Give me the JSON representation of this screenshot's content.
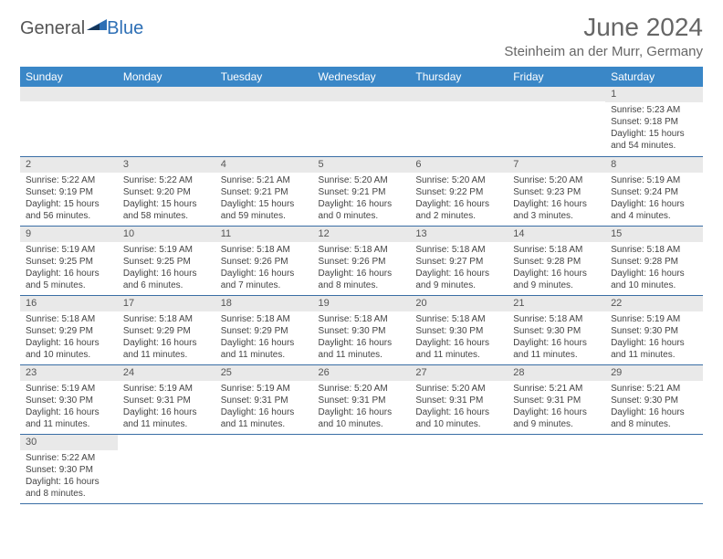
{
  "brand": {
    "general": "General",
    "blue": "Blue"
  },
  "title": "June 2024",
  "location": "Steinheim an der Murr, Germany",
  "colors": {
    "header_bg": "#3a87c7",
    "header_text": "#ffffff",
    "daynum_bg": "#e9e9e9",
    "row_border": "#3a6ea5",
    "title_color": "#666666",
    "body_text": "#444444",
    "logo_gray": "#555555",
    "logo_blue": "#2d6fb5",
    "background": "#ffffff"
  },
  "fonts": {
    "title_pt": 28,
    "location_pt": 15,
    "weekday_pt": 12,
    "daynum_pt": 11,
    "body_pt": 10,
    "logo_pt": 20
  },
  "weekdays": [
    "Sunday",
    "Monday",
    "Tuesday",
    "Wednesday",
    "Thursday",
    "Friday",
    "Saturday"
  ],
  "weeks": [
    [
      null,
      null,
      null,
      null,
      null,
      null,
      {
        "n": "1",
        "sr": "Sunrise: 5:23 AM",
        "ss": "Sunset: 9:18 PM",
        "d1": "Daylight: 15 hours",
        "d2": "and 54 minutes."
      }
    ],
    [
      {
        "n": "2",
        "sr": "Sunrise: 5:22 AM",
        "ss": "Sunset: 9:19 PM",
        "d1": "Daylight: 15 hours",
        "d2": "and 56 minutes."
      },
      {
        "n": "3",
        "sr": "Sunrise: 5:22 AM",
        "ss": "Sunset: 9:20 PM",
        "d1": "Daylight: 15 hours",
        "d2": "and 58 minutes."
      },
      {
        "n": "4",
        "sr": "Sunrise: 5:21 AM",
        "ss": "Sunset: 9:21 PM",
        "d1": "Daylight: 15 hours",
        "d2": "and 59 minutes."
      },
      {
        "n": "5",
        "sr": "Sunrise: 5:20 AM",
        "ss": "Sunset: 9:21 PM",
        "d1": "Daylight: 16 hours",
        "d2": "and 0 minutes."
      },
      {
        "n": "6",
        "sr": "Sunrise: 5:20 AM",
        "ss": "Sunset: 9:22 PM",
        "d1": "Daylight: 16 hours",
        "d2": "and 2 minutes."
      },
      {
        "n": "7",
        "sr": "Sunrise: 5:20 AM",
        "ss": "Sunset: 9:23 PM",
        "d1": "Daylight: 16 hours",
        "d2": "and 3 minutes."
      },
      {
        "n": "8",
        "sr": "Sunrise: 5:19 AM",
        "ss": "Sunset: 9:24 PM",
        "d1": "Daylight: 16 hours",
        "d2": "and 4 minutes."
      }
    ],
    [
      {
        "n": "9",
        "sr": "Sunrise: 5:19 AM",
        "ss": "Sunset: 9:25 PM",
        "d1": "Daylight: 16 hours",
        "d2": "and 5 minutes."
      },
      {
        "n": "10",
        "sr": "Sunrise: 5:19 AM",
        "ss": "Sunset: 9:25 PM",
        "d1": "Daylight: 16 hours",
        "d2": "and 6 minutes."
      },
      {
        "n": "11",
        "sr": "Sunrise: 5:18 AM",
        "ss": "Sunset: 9:26 PM",
        "d1": "Daylight: 16 hours",
        "d2": "and 7 minutes."
      },
      {
        "n": "12",
        "sr": "Sunrise: 5:18 AM",
        "ss": "Sunset: 9:26 PM",
        "d1": "Daylight: 16 hours",
        "d2": "and 8 minutes."
      },
      {
        "n": "13",
        "sr": "Sunrise: 5:18 AM",
        "ss": "Sunset: 9:27 PM",
        "d1": "Daylight: 16 hours",
        "d2": "and 9 minutes."
      },
      {
        "n": "14",
        "sr": "Sunrise: 5:18 AM",
        "ss": "Sunset: 9:28 PM",
        "d1": "Daylight: 16 hours",
        "d2": "and 9 minutes."
      },
      {
        "n": "15",
        "sr": "Sunrise: 5:18 AM",
        "ss": "Sunset: 9:28 PM",
        "d1": "Daylight: 16 hours",
        "d2": "and 10 minutes."
      }
    ],
    [
      {
        "n": "16",
        "sr": "Sunrise: 5:18 AM",
        "ss": "Sunset: 9:29 PM",
        "d1": "Daylight: 16 hours",
        "d2": "and 10 minutes."
      },
      {
        "n": "17",
        "sr": "Sunrise: 5:18 AM",
        "ss": "Sunset: 9:29 PM",
        "d1": "Daylight: 16 hours",
        "d2": "and 11 minutes."
      },
      {
        "n": "18",
        "sr": "Sunrise: 5:18 AM",
        "ss": "Sunset: 9:29 PM",
        "d1": "Daylight: 16 hours",
        "d2": "and 11 minutes."
      },
      {
        "n": "19",
        "sr": "Sunrise: 5:18 AM",
        "ss": "Sunset: 9:30 PM",
        "d1": "Daylight: 16 hours",
        "d2": "and 11 minutes."
      },
      {
        "n": "20",
        "sr": "Sunrise: 5:18 AM",
        "ss": "Sunset: 9:30 PM",
        "d1": "Daylight: 16 hours",
        "d2": "and 11 minutes."
      },
      {
        "n": "21",
        "sr": "Sunrise: 5:18 AM",
        "ss": "Sunset: 9:30 PM",
        "d1": "Daylight: 16 hours",
        "d2": "and 11 minutes."
      },
      {
        "n": "22",
        "sr": "Sunrise: 5:19 AM",
        "ss": "Sunset: 9:30 PM",
        "d1": "Daylight: 16 hours",
        "d2": "and 11 minutes."
      }
    ],
    [
      {
        "n": "23",
        "sr": "Sunrise: 5:19 AM",
        "ss": "Sunset: 9:30 PM",
        "d1": "Daylight: 16 hours",
        "d2": "and 11 minutes."
      },
      {
        "n": "24",
        "sr": "Sunrise: 5:19 AM",
        "ss": "Sunset: 9:31 PM",
        "d1": "Daylight: 16 hours",
        "d2": "and 11 minutes."
      },
      {
        "n": "25",
        "sr": "Sunrise: 5:19 AM",
        "ss": "Sunset: 9:31 PM",
        "d1": "Daylight: 16 hours",
        "d2": "and 11 minutes."
      },
      {
        "n": "26",
        "sr": "Sunrise: 5:20 AM",
        "ss": "Sunset: 9:31 PM",
        "d1": "Daylight: 16 hours",
        "d2": "and 10 minutes."
      },
      {
        "n": "27",
        "sr": "Sunrise: 5:20 AM",
        "ss": "Sunset: 9:31 PM",
        "d1": "Daylight: 16 hours",
        "d2": "and 10 minutes."
      },
      {
        "n": "28",
        "sr": "Sunrise: 5:21 AM",
        "ss": "Sunset: 9:31 PM",
        "d1": "Daylight: 16 hours",
        "d2": "and 9 minutes."
      },
      {
        "n": "29",
        "sr": "Sunrise: 5:21 AM",
        "ss": "Sunset: 9:30 PM",
        "d1": "Daylight: 16 hours",
        "d2": "and 8 minutes."
      }
    ],
    [
      {
        "n": "30",
        "sr": "Sunrise: 5:22 AM",
        "ss": "Sunset: 9:30 PM",
        "d1": "Daylight: 16 hours",
        "d2": "and 8 minutes."
      },
      null,
      null,
      null,
      null,
      null,
      null
    ]
  ]
}
